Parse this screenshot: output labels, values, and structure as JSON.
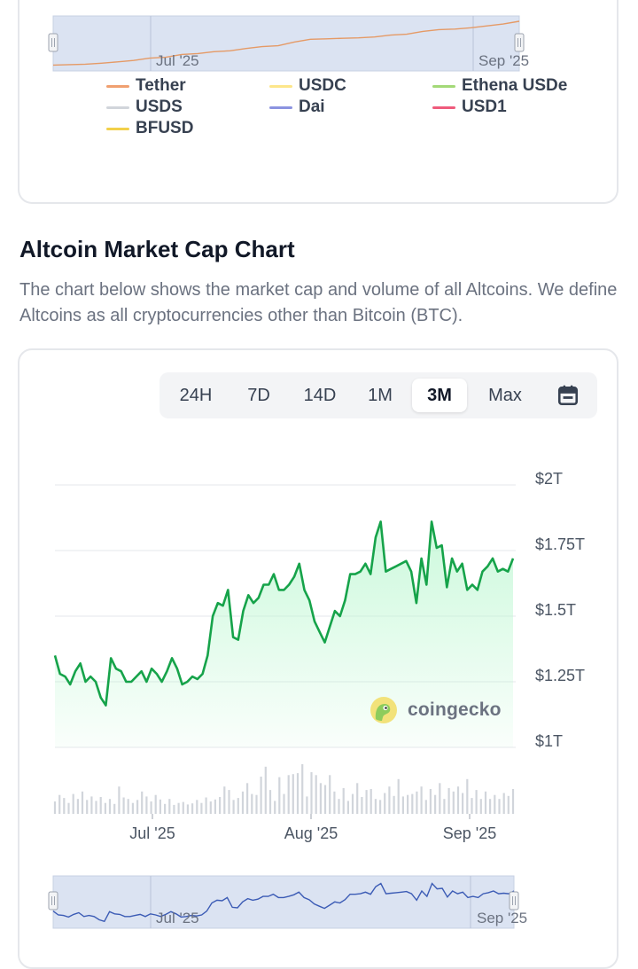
{
  "top_navigator": {
    "x_labels": [
      "Jul '25",
      "Sep '25"
    ],
    "line_color": "#e59a66",
    "series": [
      0.05,
      0.06,
      0.07,
      0.09,
      0.12,
      0.15,
      0.2,
      0.22,
      0.28,
      0.3,
      0.34,
      0.36,
      0.41,
      0.45,
      0.47,
      0.55,
      0.61,
      0.62,
      0.63,
      0.64,
      0.66,
      0.7,
      0.72,
      0.78,
      0.82,
      0.83,
      0.86,
      0.9,
      0.94,
      1.0
    ]
  },
  "legend": [
    {
      "label": "Tether",
      "color": "#f0a070"
    },
    {
      "label": "USDC",
      "color": "#fde68a"
    },
    {
      "label": "Ethena USDe",
      "color": "#a3d977"
    },
    {
      "label": "USDS",
      "color": "#d1d5db"
    },
    {
      "label": "Dai",
      "color": "#8b93e0"
    },
    {
      "label": "USD1",
      "color": "#ef5b7c"
    },
    {
      "label": "BFUSD",
      "color": "#f2d04a"
    }
  ],
  "section": {
    "title": "Altcoin Market Cap Chart",
    "description": "The chart below shows the market cap and volume of all Altcoins. We define Altcoins as all cryptocurrencies other than Bitcoin (BTC)."
  },
  "tabs": [
    "24H",
    "7D",
    "14D",
    "1M",
    "3M",
    "Max"
  ],
  "active_tab": "3M",
  "watermark": "coingecko",
  "colors": {
    "line": "#16a34a",
    "fill": "#bbf7d0",
    "volume": "#d1d5db",
    "navigator_line": "#3b5bb5",
    "navigator_bg": "#dbe3f2"
  },
  "chart_data": {
    "type": "line",
    "series": [
      {
        "values": [
          1.35,
          1.28,
          1.27,
          1.24,
          1.29,
          1.32,
          1.25,
          1.27,
          1.25,
          1.19,
          1.16,
          1.34,
          1.3,
          1.29,
          1.25,
          1.25,
          1.27,
          1.29,
          1.25,
          1.3,
          1.28,
          1.25,
          1.29,
          1.34,
          1.3,
          1.24,
          1.25,
          1.27,
          1.26,
          1.28,
          1.35,
          1.5,
          1.55,
          1.54,
          1.6,
          1.42,
          1.41,
          1.52,
          1.58,
          1.55,
          1.57,
          1.62,
          1.62,
          1.66,
          1.6,
          1.6,
          1.62,
          1.65,
          1.7,
          1.6,
          1.56,
          1.48,
          1.44,
          1.4,
          1.46,
          1.52,
          1.5,
          1.56,
          1.66,
          1.66,
          1.67,
          1.7,
          1.66,
          1.8,
          1.86,
          1.67,
          1.68,
          1.69,
          1.7,
          1.71,
          1.67,
          1.55,
          1.72,
          1.62,
          1.86,
          1.76,
          1.77,
          1.61,
          1.72,
          1.67,
          1.7,
          1.6,
          1.62,
          1.6,
          1.67,
          1.69,
          1.72,
          1.67,
          1.68,
          1.67,
          1.72
        ]
      }
    ],
    "volume": [
      0.25,
      0.38,
      0.32,
      0.22,
      0.4,
      0.3,
      0.45,
      0.28,
      0.35,
      0.26,
      0.34,
      0.22,
      0.3,
      0.2,
      0.55,
      0.33,
      0.3,
      0.22,
      0.28,
      0.45,
      0.35,
      0.25,
      0.38,
      0.29,
      0.2,
      0.3,
      0.18,
      0.22,
      0.24,
      0.19,
      0.21,
      0.28,
      0.22,
      0.33,
      0.25,
      0.29,
      0.34,
      0.55,
      0.48,
      0.28,
      0.32,
      0.45,
      0.62,
      0.4,
      0.38,
      0.75,
      0.95,
      0.48,
      0.26,
      0.74,
      0.4,
      0.78,
      0.8,
      0.82,
      1.0,
      0.35,
      0.84,
      0.78,
      0.62,
      0.58,
      0.78,
      0.45,
      0.3,
      0.52,
      0.26,
      0.4,
      0.62,
      0.34,
      0.48,
      0.5,
      0.3,
      0.28,
      0.42,
      0.55,
      0.36,
      0.7,
      0.35,
      0.38,
      0.4,
      0.45,
      0.55,
      0.28,
      0.5,
      0.38,
      0.62,
      0.3,
      0.52,
      0.45,
      0.55,
      0.42,
      0.7,
      0.32,
      0.48,
      0.3,
      0.45,
      0.3,
      0.38,
      0.3,
      0.42,
      0.36,
      0.5
    ],
    "ylim": [
      1.0,
      2.0
    ],
    "y_ticks": [
      {
        "value": 2.0,
        "label": "$2T"
      },
      {
        "value": 1.75,
        "label": "$1.75T"
      },
      {
        "value": 1.5,
        "label": "$1.5T"
      },
      {
        "value": 1.25,
        "label": "$1.25T"
      },
      {
        "value": 1.0,
        "label": "$1T"
      }
    ],
    "x_ticks": [
      "Jul '25",
      "Aug '25",
      "Sep '25"
    ],
    "grid": true,
    "navigator": {
      "x_labels": [
        "Jul '25",
        "Sep '25"
      ]
    }
  }
}
